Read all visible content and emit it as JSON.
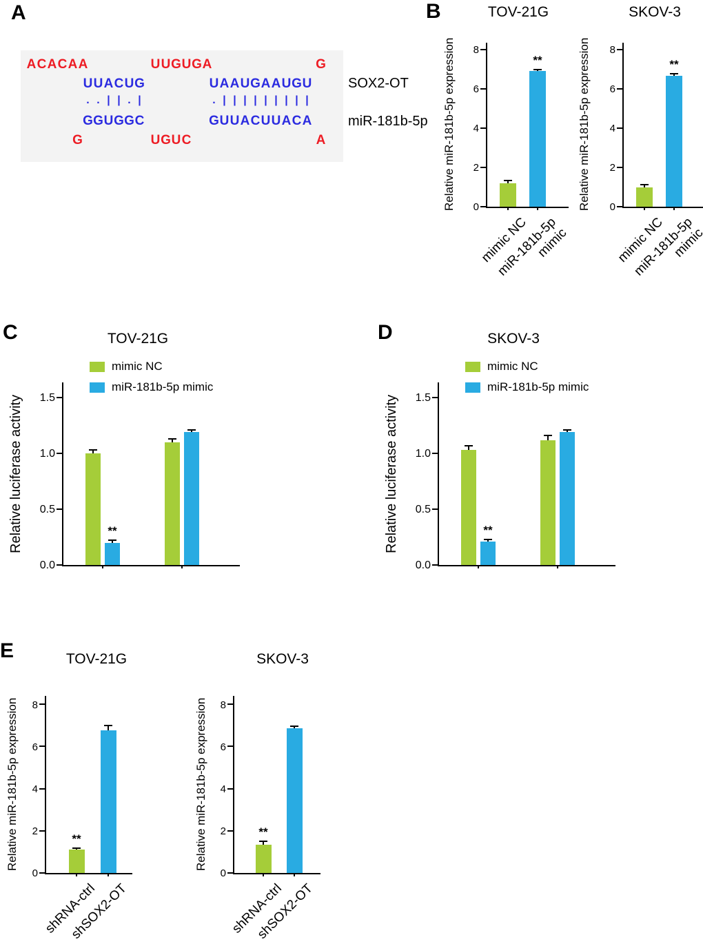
{
  "panels": {
    "a": {
      "label": "A"
    },
    "b": {
      "label": "B"
    },
    "c": {
      "label": "C"
    },
    "d": {
      "label": "D"
    },
    "e": {
      "label": "E"
    }
  },
  "colors": {
    "seq_red": "#ed1c24",
    "seq_blue": "#2b2be0",
    "bar_green": "#a5cd39",
    "bar_blue": "#29abe2",
    "axis": "#000000",
    "alignment_background": "#f3f3f3"
  },
  "alignment": {
    "top_flank": [
      "ACACAA",
      "UUGUGA",
      "G"
    ],
    "sox2ot_seq": [
      "UUACUG",
      "UAAUGAAUGU"
    ],
    "sox2ot_label": "SOX2-OT",
    "pairing_marks": [
      "..||.|",
      ".|||||||||"
    ],
    "mir_seq": [
      "GGUGGC",
      "GUUACUUACA"
    ],
    "mir_label": "miR-181b-5p",
    "bottom_flank": [
      "G",
      "UGUC",
      "A"
    ]
  },
  "chart_data": [
    {
      "panel": "B",
      "type": "bar",
      "title": "TOV-21G",
      "ylabel": "Relative miR-181b-5p expression",
      "ylim": [
        0,
        8
      ],
      "yticks": [
        0,
        2,
        4,
        6,
        8
      ],
      "ytick_labels": [
        "0",
        "2",
        "4",
        "6",
        "8"
      ],
      "categories": [
        "mimic NC",
        "miR-181b-5p\nmimic"
      ],
      "values": [
        1.2,
        6.9
      ],
      "errors": [
        0.15,
        0.1
      ],
      "sig": [
        "",
        "**"
      ],
      "bar_colors": [
        "green",
        "blue"
      ]
    },
    {
      "panel": "B",
      "type": "bar",
      "title": "SKOV-3",
      "ylabel": "Relative miR-181b-5p expression",
      "ylim": [
        0,
        8
      ],
      "yticks": [
        0,
        2,
        4,
        6,
        8
      ],
      "ytick_labels": [
        "0",
        "2",
        "4",
        "6",
        "8"
      ],
      "categories": [
        "mimic NC",
        "miR-181b-5p\nmimic"
      ],
      "values": [
        1.0,
        6.65
      ],
      "errors": [
        0.12,
        0.12
      ],
      "sig": [
        "",
        "**"
      ],
      "bar_colors": [
        "green",
        "blue"
      ]
    },
    {
      "panel": "C",
      "type": "grouped-bar",
      "title": "TOV-21G",
      "ylabel": "Relative luciferase activity",
      "ylim": [
        0,
        1.5
      ],
      "yticks": [
        0,
        0.5,
        1.0,
        1.5
      ],
      "ytick_labels": [
        "0.0",
        "0.5",
        "1.0",
        "1.5"
      ],
      "categories": [
        "",
        ""
      ],
      "legend": [
        {
          "label": "mimic NC",
          "color": "green"
        },
        {
          "label": "miR-181b-5p mimic",
          "color": "blue"
        }
      ],
      "series": [
        {
          "name": "mimic NC",
          "color": "green",
          "values": [
            1.0,
            1.1
          ],
          "errors": [
            0.03,
            0.03
          ],
          "sig": [
            "",
            ""
          ]
        },
        {
          "name": "miR-181b-5p mimic",
          "color": "blue",
          "values": [
            0.2,
            1.19
          ],
          "errors": [
            0.02,
            0.02
          ],
          "sig": [
            "**",
            ""
          ]
        }
      ]
    },
    {
      "panel": "D",
      "type": "grouped-bar",
      "title": "SKOV-3",
      "ylabel": "Relative luciferase activity",
      "ylim": [
        0,
        1.5
      ],
      "yticks": [
        0,
        0.5,
        1.0,
        1.5
      ],
      "ytick_labels": [
        "0.0",
        "0.5",
        "1.0",
        "1.5"
      ],
      "categories": [
        "",
        ""
      ],
      "legend": [
        {
          "label": "mimic NC",
          "color": "green"
        },
        {
          "label": "miR-181b-5p mimic",
          "color": "blue"
        }
      ],
      "series": [
        {
          "name": "mimic NC",
          "color": "green",
          "values": [
            1.03,
            1.12
          ],
          "errors": [
            0.04,
            0.04
          ],
          "sig": [
            "",
            ""
          ]
        },
        {
          "name": "miR-181b-5p mimic",
          "color": "blue",
          "values": [
            0.21,
            1.19
          ],
          "errors": [
            0.02,
            0.02
          ],
          "sig": [
            "**",
            ""
          ]
        }
      ]
    },
    {
      "panel": "E",
      "type": "bar",
      "title": "TOV-21G",
      "ylabel": "Relative miR-181b-5p expression",
      "ylim": [
        0,
        8
      ],
      "yticks": [
        0,
        2,
        4,
        6,
        8
      ],
      "ytick_labels": [
        "0",
        "2",
        "4",
        "6",
        "8"
      ],
      "categories": [
        "shRNA-ctrl",
        "shSOX2-OT"
      ],
      "values": [
        1.1,
        6.75
      ],
      "errors": [
        0.08,
        0.25
      ],
      "sig": [
        "**",
        ""
      ],
      "bar_colors": [
        "green",
        "blue"
      ]
    },
    {
      "panel": "E",
      "type": "bar",
      "title": "SKOV-3",
      "ylabel": "Relative miR-181b-5p expression",
      "ylim": [
        0,
        8
      ],
      "yticks": [
        0,
        2,
        4,
        6,
        8
      ],
      "ytick_labels": [
        "0",
        "2",
        "4",
        "6",
        "8"
      ],
      "categories": [
        "shRNA-ctrl",
        "shSOX2-OT"
      ],
      "values": [
        1.35,
        6.85
      ],
      "errors": [
        0.15,
        0.1
      ],
      "sig": [
        "**",
        ""
      ],
      "bar_colors": [
        "green",
        "blue"
      ]
    }
  ]
}
